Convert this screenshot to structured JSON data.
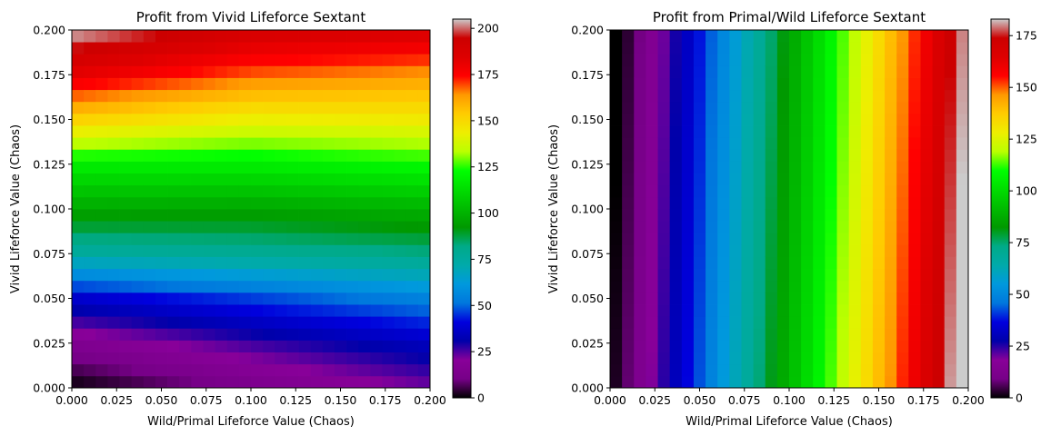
{
  "chart_data": [
    {
      "type": "heatmap",
      "title": "Profit from Vivid Lifeforce Sextant",
      "xlabel": "Wild/Primal Lifeforce Value (Chaos)",
      "ylabel": "Vivid Lifeforce Value (Chaos)",
      "xlim": [
        0,
        0.2
      ],
      "ylim": [
        0,
        0.2
      ],
      "xticks": [
        "0.000",
        "0.025",
        "0.050",
        "0.075",
        "0.100",
        "0.125",
        "0.150",
        "0.175",
        "0.200"
      ],
      "yticks": [
        "0.000",
        "0.025",
        "0.050",
        "0.075",
        "0.100",
        "0.125",
        "0.150",
        "0.175",
        "0.200"
      ],
      "grid_cells": [
        30,
        30
      ],
      "colormap": "nipy_spectral",
      "colorbar": {
        "min": 0,
        "max": 205,
        "ticks": [
          "0",
          "25",
          "50",
          "75",
          "100",
          "125",
          "150",
          "175",
          "200"
        ]
      },
      "value_profile": {
        "description_points_y": [
          0.0,
          0.025,
          0.05,
          0.075,
          0.1,
          0.125,
          0.15,
          0.175,
          0.2
        ],
        "at_x_0": [
          0,
          15,
          37,
          75,
          97,
          118,
          152,
          182,
          205
        ],
        "at_x_0.1": [
          12,
          26,
          46,
          78,
          96,
          118,
          143,
          168,
          190
        ],
        "at_x_0.2": [
          22,
          35,
          55,
          82,
          100,
          122,
          145,
          163,
          187
        ]
      }
    },
    {
      "type": "heatmap",
      "title": "Profit from Primal/Wild Lifeforce Sextant",
      "xlabel": "Wild/Primal Lifeforce Value (Chaos)",
      "ylabel": "Vivid Lifeforce Value (Chaos)",
      "xlim": [
        0,
        0.2
      ],
      "ylim": [
        0,
        0.2
      ],
      "xticks": [
        "0.000",
        "0.025",
        "0.050",
        "0.075",
        "0.100",
        "0.125",
        "0.150",
        "0.175",
        "0.200"
      ],
      "yticks": [
        "0.000",
        "0.025",
        "0.050",
        "0.075",
        "0.100",
        "0.125",
        "0.150",
        "0.175",
        "0.200"
      ],
      "grid_cells": [
        30,
        30
      ],
      "colormap": "nipy_spectral",
      "colorbar": {
        "min": 0,
        "max": 183,
        "ticks": [
          "0",
          "25",
          "50",
          "75",
          "100",
          "125",
          "150",
          "175"
        ]
      },
      "value_profile": {
        "description": "value depends mainly on x, roughly 0 at x=0 rising to ~183 at x=0.2, slightly higher near bottom-right"
      }
    }
  ]
}
